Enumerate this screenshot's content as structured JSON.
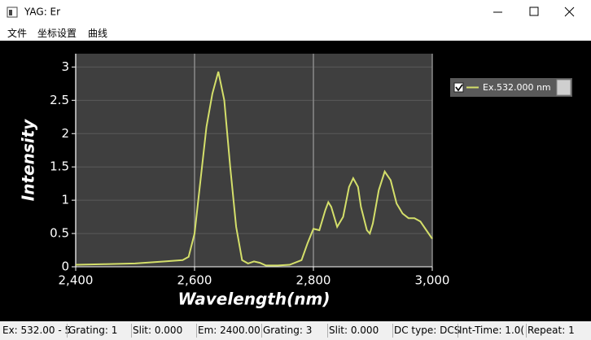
{
  "window": {
    "title": "YAG:  Er",
    "menu": [
      "文件",
      "坐标设置",
      "曲线"
    ],
    "status": [
      "Ex: 532.00 - 5",
      "Grating: 1",
      "Slit: 0.000",
      "Em: 2400.00",
      "Grating: 3",
      "Slit: 0.000",
      "DC type: DCS",
      "Int-Time: 1.0(",
      "Repeat: 1"
    ]
  },
  "chart_data": {
    "type": "line",
    "xlabel": "Wavelength(nm)",
    "ylabel": "Intensity",
    "x": [
      2400,
      2450,
      2500,
      2550,
      2580,
      2590,
      2600,
      2610,
      2620,
      2630,
      2640,
      2650,
      2660,
      2670,
      2680,
      2690,
      2700,
      2710,
      2720,
      2740,
      2760,
      2780,
      2790,
      2800,
      2810,
      2820,
      2825,
      2830,
      2840,
      2850,
      2860,
      2867,
      2875,
      2880,
      2890,
      2895,
      2900,
      2910,
      2920,
      2930,
      2940,
      2950,
      2960,
      2970,
      2980,
      2990,
      3000
    ],
    "series": [
      {
        "name": "Ex.532.000 nm",
        "color": "#d4df6a",
        "values": [
          0.03,
          0.04,
          0.05,
          0.08,
          0.1,
          0.15,
          0.5,
          1.3,
          2.1,
          2.6,
          2.93,
          2.5,
          1.5,
          0.6,
          0.1,
          0.05,
          0.08,
          0.06,
          0.02,
          0.02,
          0.03,
          0.1,
          0.35,
          0.57,
          0.55,
          0.85,
          0.97,
          0.9,
          0.6,
          0.75,
          1.2,
          1.33,
          1.2,
          0.9,
          0.55,
          0.5,
          0.65,
          1.15,
          1.43,
          1.3,
          0.95,
          0.8,
          0.73,
          0.73,
          0.68,
          0.55,
          0.42
        ]
      }
    ],
    "xlim": [
      2400,
      3000
    ],
    "ylim": [
      0,
      3.2
    ],
    "xticks": [
      {
        "value": 2400,
        "label": "2,400"
      },
      {
        "value": 2600,
        "label": "2,600"
      },
      {
        "value": 2800,
        "label": "2,800"
      },
      {
        "value": 3000,
        "label": "3,000"
      }
    ],
    "yticks": [
      0,
      0.5,
      1,
      1.5,
      2,
      2.5,
      3
    ],
    "grid": true
  }
}
